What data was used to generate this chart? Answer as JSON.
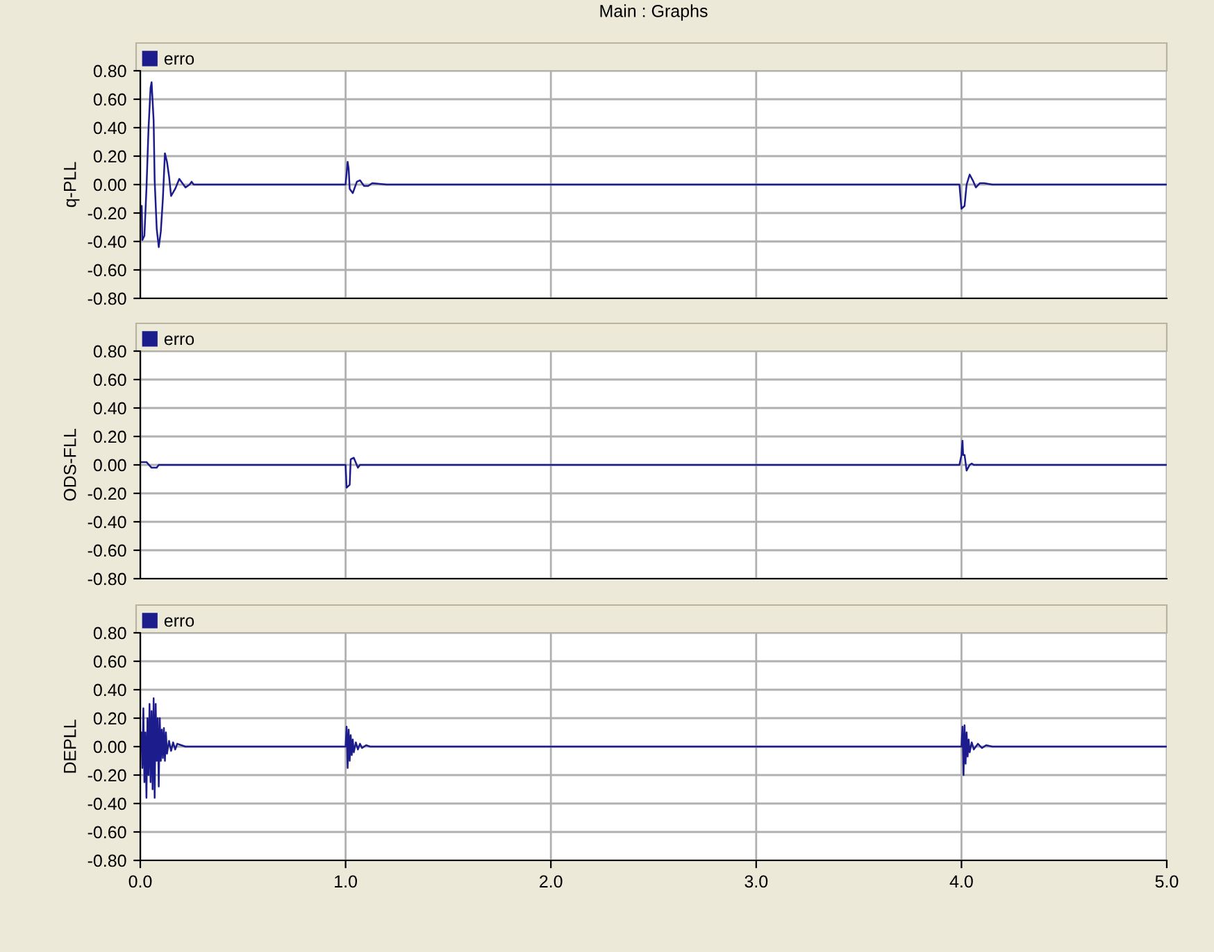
{
  "chart_data": [
    {
      "type": "line",
      "title": "Main : Graphs",
      "ylabel": "q-PLL",
      "xlim": [
        0,
        5
      ],
      "xticks": [
        0,
        1,
        2,
        3,
        4,
        5
      ],
      "ylim": [
        -0.8,
        0.8
      ],
      "yticks": [
        {
          "value": 0.8,
          "label": "0.80"
        },
        {
          "value": 0.6,
          "label": "0.60"
        },
        {
          "value": 0.4,
          "label": "0.40"
        },
        {
          "value": 0.2,
          "label": "0.20"
        },
        {
          "value": 0,
          "label": "0.00"
        },
        {
          "value": -0.2,
          "label": "-0.20"
        },
        {
          "value": -0.4,
          "label": "-0.40"
        },
        {
          "value": -0.6,
          "label": "-0.60"
        },
        {
          "value": -0.8,
          "label": "-0.80"
        }
      ],
      "grid": true,
      "legend": "top left",
      "tick_labels": "y",
      "series": [
        {
          "name": "erro",
          "color": "#1c1c8c",
          "x": [
            0,
            0.007,
            0.01,
            0.02,
            0.03,
            0.04,
            0.05,
            0.055,
            0.065,
            0.07,
            0.08,
            0.09,
            0.1,
            0.11,
            0.12,
            0.13,
            0.14,
            0.15,
            0.17,
            0.19,
            0.2,
            0.22,
            0.24,
            0.25,
            0.26,
            1.0,
            1.01,
            1.015,
            1.02,
            1.035,
            1.055,
            1.07,
            1.09,
            1.11,
            1.13,
            1.2,
            3.99,
            4.0,
            4.015,
            4.025,
            4.04,
            4.055,
            4.07,
            4.09,
            4.11,
            4.15,
            5.0
          ],
          "values": [
            -0.15,
            -0.15,
            -0.39,
            -0.36,
            -0.03,
            0.39,
            0.68,
            0.72,
            0.45,
            0.03,
            -0.31,
            -0.44,
            -0.33,
            -0.1,
            0.22,
            0.16,
            0.06,
            -0.08,
            -0.03,
            0.04,
            0.02,
            -0.02,
            0,
            0.02,
            0,
            0,
            0.16,
            0.11,
            -0.03,
            -0.06,
            0.02,
            0.03,
            -0.01,
            -0.01,
            0.01,
            0,
            0,
            -0.17,
            -0.15,
            0,
            0.07,
            0.03,
            -0.02,
            0.01,
            0.01,
            0,
            0
          ]
        }
      ]
    },
    {
      "type": "line",
      "ylabel": "ODS-FLL",
      "xlim": [
        0,
        5
      ],
      "xticks": [
        0,
        1,
        2,
        3,
        4,
        5
      ],
      "ylim": [
        -0.8,
        0.8
      ],
      "yticks": [
        {
          "value": 0.8,
          "label": "0.80"
        },
        {
          "value": 0.6,
          "label": "0.60"
        },
        {
          "value": 0.4,
          "label": "0.40"
        },
        {
          "value": 0.2,
          "label": "0.20"
        },
        {
          "value": 0,
          "label": "0.00"
        },
        {
          "value": -0.2,
          "label": "-0.20"
        },
        {
          "value": -0.4,
          "label": "-0.40"
        },
        {
          "value": -0.6,
          "label": "-0.60"
        },
        {
          "value": -0.8,
          "label": "-0.80"
        }
      ],
      "grid": true,
      "legend": "top left",
      "tick_labels": "y",
      "series": [
        {
          "name": "erro",
          "color": "#1c1c8c",
          "x": [
            0,
            0.03,
            0.055,
            0.08,
            0.09,
            1.0,
            1.005,
            1.02,
            1.025,
            1.04,
            1.06,
            1.07,
            3.99,
            4.0,
            4.005,
            4.008,
            4.015,
            4.025,
            4.04,
            4.05,
            4.06,
            5.0
          ],
          "values": [
            0.02,
            0.02,
            -0.02,
            -0.02,
            0,
            0,
            -0.16,
            -0.14,
            0.04,
            0.05,
            -0.02,
            0,
            0,
            0.07,
            0.17,
            0.07,
            0.07,
            -0.04,
            0,
            0.01,
            0,
            0
          ]
        }
      ]
    },
    {
      "type": "line",
      "ylabel": "DEPLL",
      "xlim": [
        0,
        5
      ],
      "xticks": [
        {
          "value": 0,
          "label": "0.0"
        },
        {
          "value": 1,
          "label": "1.0"
        },
        {
          "value": 2,
          "label": "2.0"
        },
        {
          "value": 3,
          "label": "3.0"
        },
        {
          "value": 4,
          "label": "4.0"
        },
        {
          "value": 5,
          "label": "5.0"
        }
      ],
      "ylim": [
        -0.8,
        0.8
      ],
      "yticks": [
        {
          "value": 0.8,
          "label": "0.80"
        },
        {
          "value": 0.6,
          "label": "0.60"
        },
        {
          "value": 0.4,
          "label": "0.40"
        },
        {
          "value": 0.2,
          "label": "0.20"
        },
        {
          "value": 0,
          "label": "0.00"
        },
        {
          "value": -0.2,
          "label": "-0.20"
        },
        {
          "value": -0.4,
          "label": "-0.40"
        },
        {
          "value": -0.6,
          "label": "-0.60"
        },
        {
          "value": -0.8,
          "label": "-0.80"
        }
      ],
      "grid": true,
      "legend": "top left",
      "series": [
        {
          "name": "erro",
          "color": "#1c1c8c",
          "x": [
            0,
            0.005,
            0.01,
            0.015,
            0.02,
            0.025,
            0.03,
            0.035,
            0.04,
            0.045,
            0.05,
            0.055,
            0.06,
            0.065,
            0.07,
            0.075,
            0.08,
            0.085,
            0.09,
            0.095,
            0.1,
            0.105,
            0.11,
            0.115,
            0.12,
            0.125,
            0.13,
            0.14,
            0.15,
            0.16,
            0.17,
            0.18,
            0.2,
            0.22,
            0.25,
            1.0,
            1.005,
            1.01,
            1.015,
            1.02,
            1.025,
            1.03,
            1.035,
            1.04,
            1.05,
            1.06,
            1.07,
            1.08,
            1.1,
            1.12,
            4.0,
            4.005,
            4.01,
            4.015,
            4.02,
            4.025,
            4.03,
            4.035,
            4.04,
            4.05,
            4.06,
            4.08,
            4.1,
            4.12,
            4.15,
            4.18,
            5.0
          ],
          "values": [
            0,
            0.1,
            -0.15,
            0.27,
            -0.25,
            0.1,
            -0.36,
            0.2,
            -0.2,
            0.3,
            -0.25,
            0.25,
            -0.3,
            0.34,
            -0.36,
            0.3,
            -0.1,
            0.2,
            -0.28,
            0.2,
            -0.1,
            0.12,
            -0.08,
            0.13,
            -0.1,
            0.1,
            -0.05,
            0.04,
            -0.03,
            0.03,
            -0.02,
            0.02,
            0.01,
            0,
            0,
            0,
            0.14,
            -0.15,
            0.12,
            -0.1,
            0.08,
            -0.06,
            0.05,
            -0.04,
            0.03,
            -0.02,
            0.02,
            -0.01,
            0.01,
            0,
            0,
            0.14,
            -0.2,
            0.15,
            -0.12,
            0.1,
            -0.07,
            0.05,
            -0.04,
            0.03,
            -0.02,
            0.02,
            -0.01,
            0.01,
            0,
            0,
            0
          ]
        }
      ]
    }
  ]
}
